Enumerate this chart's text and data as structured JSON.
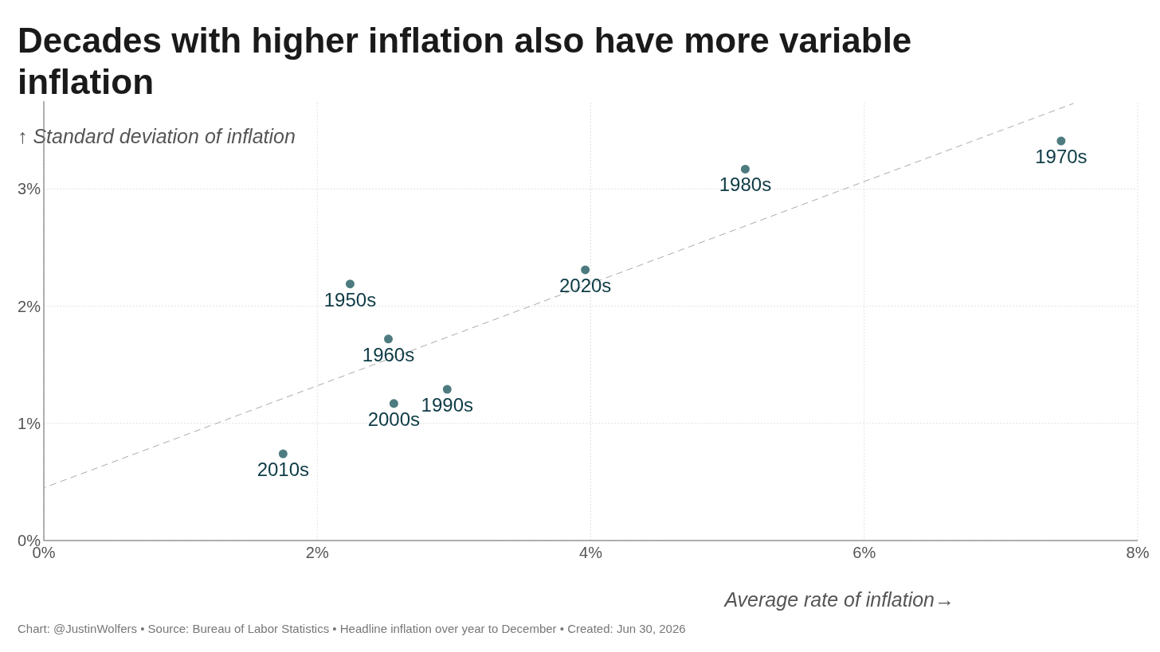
{
  "chart_data": {
    "type": "scatter",
    "title": "Decades with higher inflation also have more variable inflation",
    "xlabel": "Average rate of inflation→",
    "ylabel": "↑ Standard deviation of inflation",
    "series": [
      {
        "type": "line",
        "color": "#aaaaaa",
        "line_style": "dashed",
        "marker": "none",
        "x": [
          0,
          7.53
        ],
        "values": [
          0.45,
          3.73
        ]
      },
      {
        "color": "#4d7b80",
        "marker": "circle",
        "x": [
          7.44,
          5.13,
          3.96,
          2.24,
          2.52,
          2.95,
          2.56,
          1.75
        ],
        "values": [
          3.41,
          3.17,
          2.31,
          2.19,
          1.72,
          1.29,
          1.17,
          0.74
        ]
      }
    ],
    "annotations": [
      {
        "text": "1970s",
        "x": 7.44,
        "y": 3.41
      },
      {
        "text": "1980s",
        "x": 5.13,
        "y": 3.17
      },
      {
        "text": "2020s",
        "x": 3.96,
        "y": 2.31
      },
      {
        "text": "1950s",
        "x": 2.24,
        "y": 2.19
      },
      {
        "text": "1960s",
        "x": 2.52,
        "y": 1.72
      },
      {
        "text": "1990s",
        "x": 2.95,
        "y": 1.29
      },
      {
        "text": "2000s",
        "x": 2.56,
        "y": 1.17
      },
      {
        "text": "2010s",
        "x": 1.75,
        "y": 0.74
      },
      "Chart: @JustinWolfers • Source: Bureau of Labor Statistics • Headline inflation over year to December • Created: Jun 30, 2026"
    ],
    "xlim": [
      0,
      8
    ],
    "ylim": [
      0,
      3.75
    ],
    "xticks": [
      {
        "value": 0,
        "label": "0%"
      },
      {
        "value": 2,
        "label": "2%"
      },
      {
        "value": 4,
        "label": "4%"
      },
      {
        "value": 6,
        "label": "6%"
      },
      {
        "value": 8,
        "label": "8%"
      }
    ],
    "yticks": [
      {
        "value": 0,
        "label": "0%"
      },
      {
        "value": 1,
        "label": "1%"
      },
      {
        "value": 2,
        "label": "2%"
      },
      {
        "value": 3,
        "label": "3%"
      }
    ],
    "grid": true
  }
}
